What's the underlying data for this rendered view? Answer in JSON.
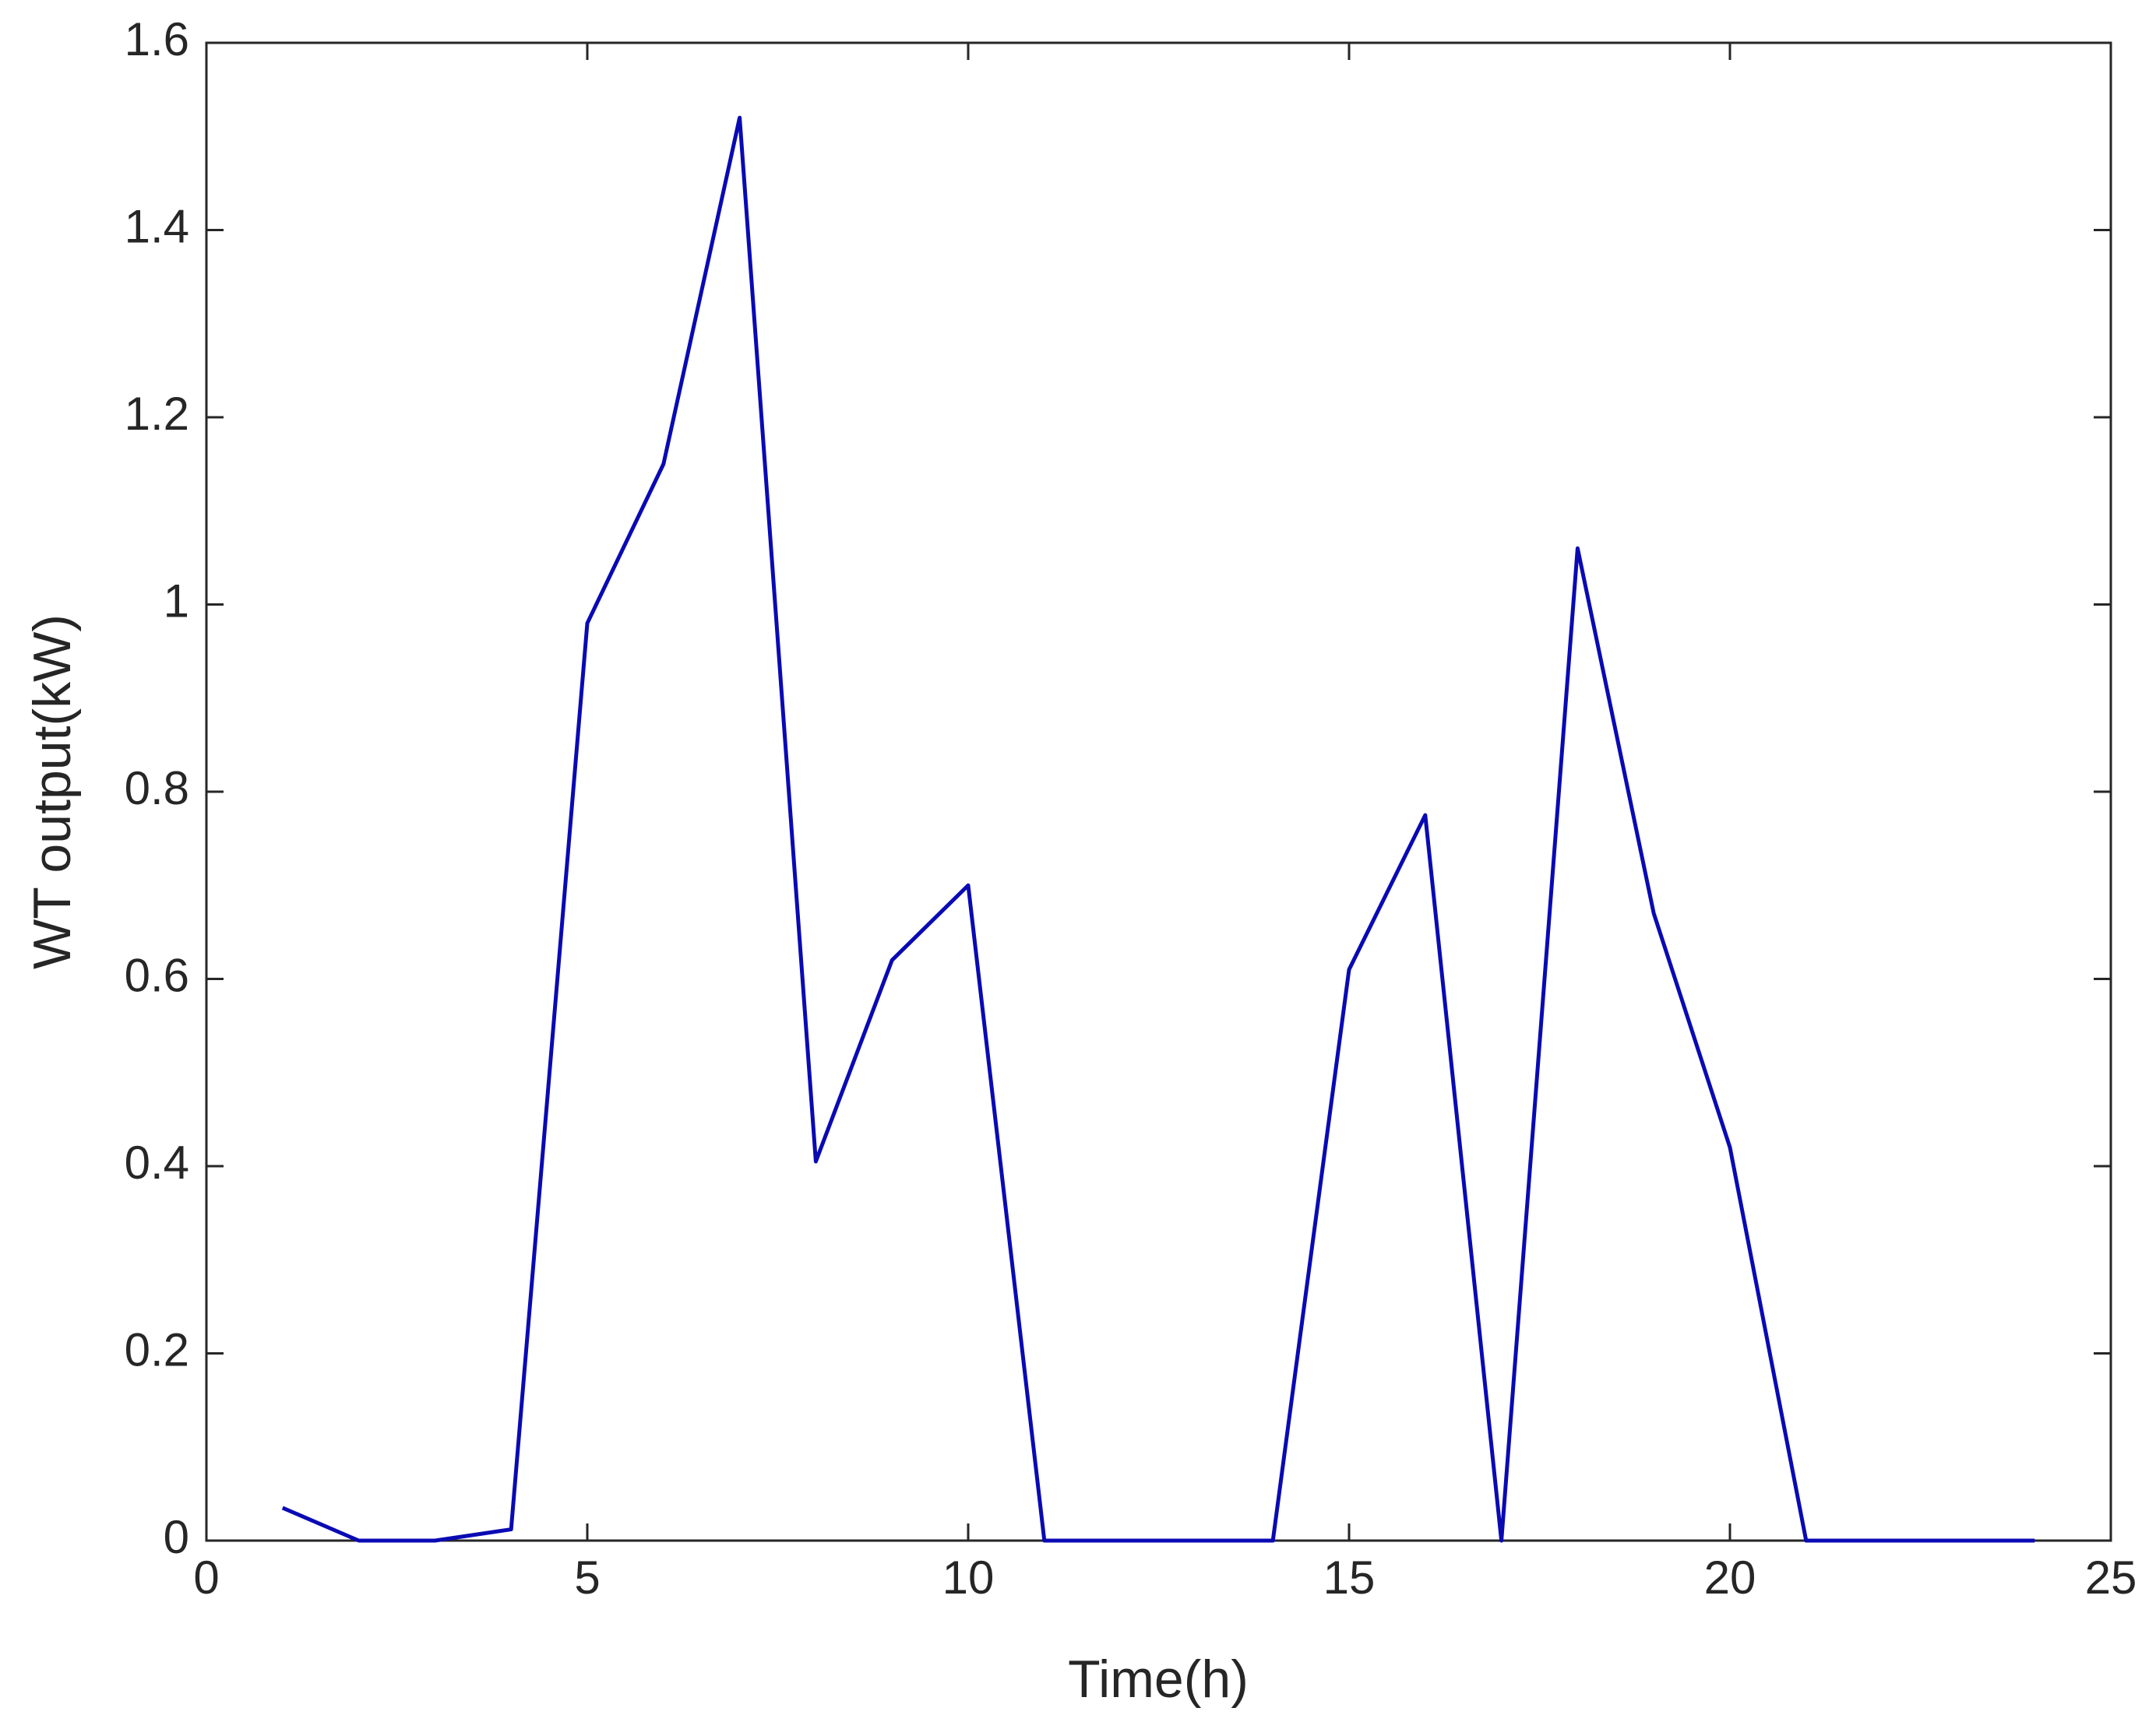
{
  "chart_data": {
    "type": "line",
    "x_label": "Time(h)",
    "y_label": "WT output(kW)",
    "x": [
      1,
      2,
      3,
      4,
      5,
      6,
      7,
      8,
      9,
      10,
      11,
      12,
      13,
      14,
      15,
      16,
      17,
      18,
      19,
      20,
      21,
      22,
      23,
      24
    ],
    "series": [
      {
        "color": "#0a0ab4",
        "values": [
          0.035,
          0,
          0,
          0.012,
          0.98,
          1.15,
          1.52,
          0.405,
          0.62,
          0.7,
          0,
          0,
          0,
          0,
          0.61,
          0.775,
          0,
          1.06,
          0.67,
          0.42,
          0,
          0,
          0,
          0
        ]
      }
    ],
    "xlim": [
      0,
      25
    ],
    "xticks": [
      0,
      5,
      10,
      15,
      20,
      25
    ],
    "ylim": [
      0,
      1.6
    ],
    "yticks": [
      0,
      0.2,
      0.4,
      0.6,
      0.8,
      1,
      1.2,
      1.4,
      1.6
    ],
    "grid": false
  }
}
